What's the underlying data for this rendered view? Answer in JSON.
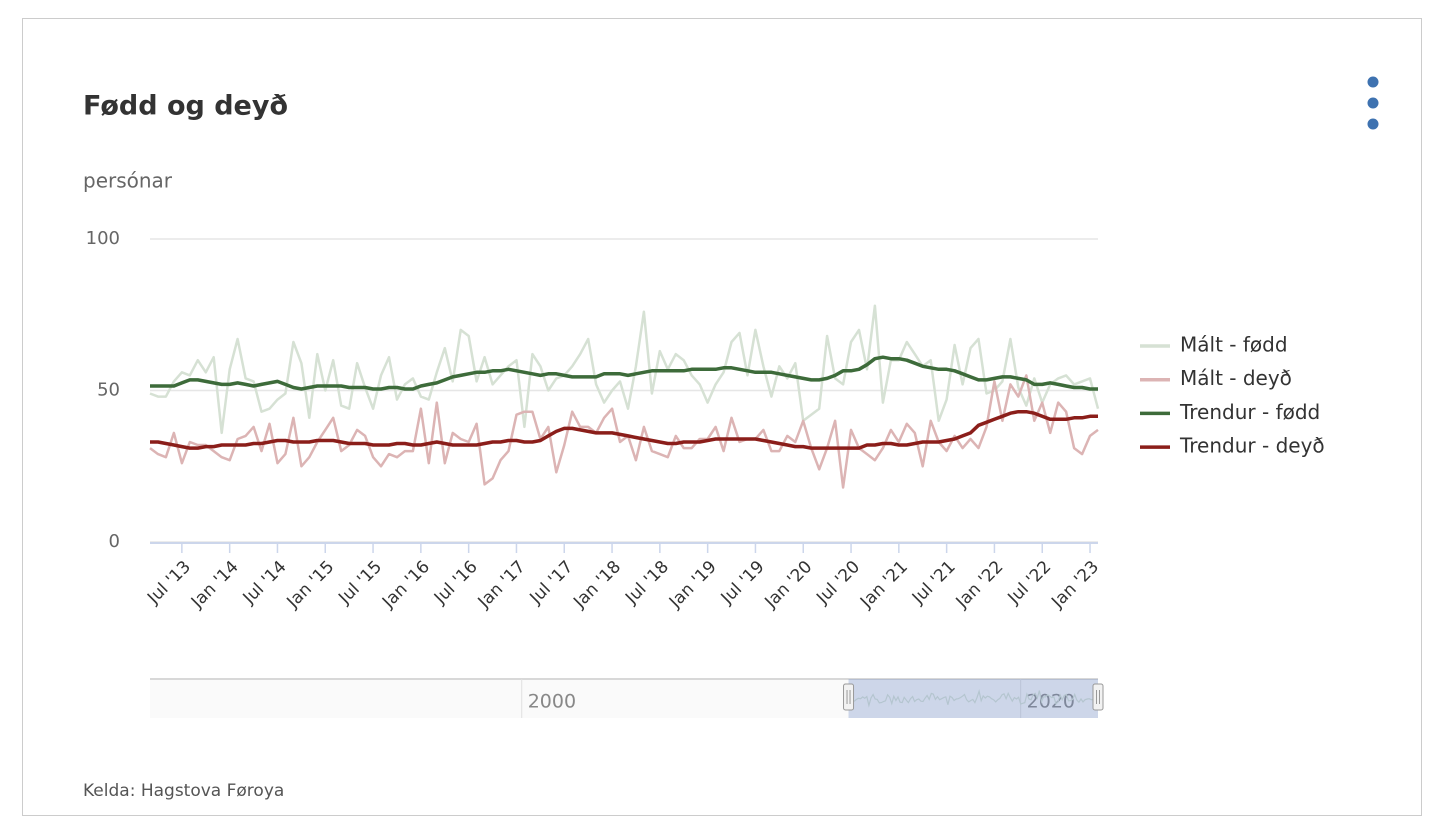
{
  "chart_data": {
    "type": "line",
    "title": "Fødd og deyð",
    "y_axis_title": "persónar",
    "source": "Kelda: Hagstova Føroya",
    "xlim": [
      "2013-03",
      "2023-02"
    ],
    "ylim": [
      0,
      100
    ],
    "yticks": [
      0,
      50,
      100
    ],
    "grid": true,
    "legend": "right",
    "x": [
      "2013-03",
      "2013-04",
      "2013-05",
      "2013-06",
      "2013-07",
      "2013-08",
      "2013-09",
      "2013-10",
      "2013-11",
      "2013-12",
      "2014-01",
      "2014-02",
      "2014-03",
      "2014-04",
      "2014-05",
      "2014-06",
      "2014-07",
      "2014-08",
      "2014-09",
      "2014-10",
      "2014-11",
      "2014-12",
      "2015-01",
      "2015-02",
      "2015-03",
      "2015-04",
      "2015-05",
      "2015-06",
      "2015-07",
      "2015-08",
      "2015-09",
      "2015-10",
      "2015-11",
      "2015-12",
      "2016-01",
      "2016-02",
      "2016-03",
      "2016-04",
      "2016-05",
      "2016-06",
      "2016-07",
      "2016-08",
      "2016-09",
      "2016-10",
      "2016-11",
      "2016-12",
      "2017-01",
      "2017-02",
      "2017-03",
      "2017-04",
      "2017-05",
      "2017-06",
      "2017-07",
      "2017-08",
      "2017-09",
      "2017-10",
      "2017-11",
      "2017-12",
      "2018-01",
      "2018-02",
      "2018-03",
      "2018-04",
      "2018-05",
      "2018-06",
      "2018-07",
      "2018-08",
      "2018-09",
      "2018-10",
      "2018-11",
      "2018-12",
      "2019-01",
      "2019-02",
      "2019-03",
      "2019-04",
      "2019-05",
      "2019-06",
      "2019-07",
      "2019-08",
      "2019-09",
      "2019-10",
      "2019-11",
      "2019-12",
      "2020-01",
      "2020-02",
      "2020-03",
      "2020-04",
      "2020-05",
      "2020-06",
      "2020-07",
      "2020-08",
      "2020-09",
      "2020-10",
      "2020-11",
      "2020-12",
      "2021-01",
      "2021-02",
      "2021-03",
      "2021-04",
      "2021-05",
      "2021-06",
      "2021-07",
      "2021-08",
      "2021-09",
      "2021-10",
      "2021-11",
      "2021-12",
      "2022-01",
      "2022-02",
      "2022-03",
      "2022-04",
      "2022-05",
      "2022-06",
      "2022-07",
      "2022-08",
      "2022-09",
      "2022-10",
      "2022-11",
      "2022-12",
      "2023-01",
      "2023-02"
    ],
    "xticks": [
      {
        "value": "2013-07",
        "label": "Jul '13"
      },
      {
        "value": "2014-01",
        "label": "Jan '14"
      },
      {
        "value": "2014-07",
        "label": "Jul '14"
      },
      {
        "value": "2015-01",
        "label": "Jan '15"
      },
      {
        "value": "2015-07",
        "label": "Jul '15"
      },
      {
        "value": "2016-01",
        "label": "Jan '16"
      },
      {
        "value": "2016-07",
        "label": "Jul '16"
      },
      {
        "value": "2017-01",
        "label": "Jan '17"
      },
      {
        "value": "2017-07",
        "label": "Jul '17"
      },
      {
        "value": "2018-01",
        "label": "Jan '18"
      },
      {
        "value": "2018-07",
        "label": "Jul '18"
      },
      {
        "value": "2019-01",
        "label": "Jan '19"
      },
      {
        "value": "2019-07",
        "label": "Jul '19"
      },
      {
        "value": "2020-01",
        "label": "Jan '20"
      },
      {
        "value": "2020-07",
        "label": "Jul '20"
      },
      {
        "value": "2021-01",
        "label": "Jan '21"
      },
      {
        "value": "2021-07",
        "label": "Jul '21"
      },
      {
        "value": "2022-01",
        "label": "Jan '22"
      },
      {
        "value": "2022-07",
        "label": "Jul '22"
      },
      {
        "value": "2023-01",
        "label": "Jan '23"
      }
    ],
    "series": [
      {
        "name": "Mált - fødd",
        "color": "#d6e1d4",
        "width": 2.5,
        "values": [
          49,
          48,
          48,
          53,
          56,
          55,
          60,
          56,
          61,
          36,
          57,
          67,
          54,
          53,
          43,
          44,
          47,
          49,
          66,
          59,
          41,
          62,
          50,
          60,
          45,
          44,
          59,
          51,
          44,
          55,
          61,
          47,
          52,
          54,
          48,
          47,
          56,
          64,
          53,
          70,
          68,
          53,
          61,
          52,
          55,
          58,
          60,
          38,
          62,
          58,
          50,
          54,
          55,
          58,
          62,
          67,
          52,
          46,
          50,
          53,
          44,
          58,
          76,
          49,
          63,
          57,
          62,
          60,
          55,
          52,
          46,
          52,
          56,
          66,
          69,
          55,
          70,
          58,
          48,
          58,
          54,
          59,
          40,
          42,
          44,
          68,
          54,
          52,
          66,
          70,
          57,
          78,
          46,
          60,
          60,
          66,
          62,
          58,
          60,
          40,
          47,
          65,
          52,
          64,
          67,
          49,
          50,
          53,
          67,
          51,
          45,
          54,
          46,
          52,
          54,
          55,
          52,
          53,
          54,
          44
        ]
      },
      {
        "name": "Mált - deyð",
        "color": "#dcb4b4",
        "width": 2.5,
        "values": [
          31,
          29,
          28,
          36,
          26,
          33,
          32,
          32,
          30,
          28,
          27,
          34,
          35,
          38,
          30,
          39,
          26,
          29,
          41,
          25,
          28,
          33,
          37,
          41,
          30,
          32,
          37,
          35,
          28,
          25,
          29,
          28,
          30,
          30,
          44,
          26,
          46,
          26,
          36,
          34,
          33,
          39,
          19,
          21,
          27,
          30,
          42,
          43,
          43,
          34,
          38,
          23,
          32,
          43,
          38,
          38,
          36,
          41,
          44,
          33,
          35,
          27,
          38,
          30,
          29,
          28,
          35,
          31,
          31,
          34,
          34,
          38,
          30,
          41,
          33,
          34,
          34,
          37,
          30,
          30,
          35,
          33,
          40,
          31,
          24,
          31,
          40,
          18,
          37,
          31,
          29,
          27,
          31,
          37,
          33,
          39,
          36,
          25,
          40,
          33,
          30,
          35,
          31,
          34,
          31,
          38,
          53,
          40,
          52,
          48,
          55,
          40,
          46,
          36,
          46,
          43,
          31,
          29,
          35,
          37
        ]
      },
      {
        "name": "Trendur - fødd",
        "color": "#3d6b3a",
        "width": 3.5,
        "values": [
          51.5,
          51.5,
          51.5,
          51.5,
          52.5,
          53.5,
          53.5,
          53,
          52.5,
          52,
          52,
          52.5,
          52,
          51.5,
          52,
          52.5,
          53,
          52,
          51,
          50.5,
          51,
          51.5,
          51.5,
          51.5,
          51.5,
          51,
          51,
          51,
          50.5,
          50.5,
          51,
          51,
          50.5,
          50.5,
          51.5,
          52,
          52.5,
          53.5,
          54.5,
          55,
          55.5,
          56,
          56,
          56.5,
          56.5,
          57,
          56.5,
          56,
          55.5,
          55,
          55.5,
          55.5,
          55,
          54.5,
          54.5,
          54.5,
          54.5,
          55.5,
          55.5,
          55.5,
          55,
          55.5,
          56,
          56.5,
          56.5,
          56.5,
          56.5,
          56.5,
          57,
          57,
          57,
          57,
          57.5,
          57.5,
          57,
          56.5,
          56,
          56,
          56,
          55.5,
          55,
          54.5,
          54,
          53.5,
          53.5,
          54,
          55,
          56.5,
          56.5,
          57,
          58.5,
          60.5,
          61,
          60.5,
          60.5,
          60,
          59,
          58,
          57.5,
          57,
          57,
          56.5,
          55.5,
          54.5,
          53.5,
          53.5,
          54,
          54.5,
          54.5,
          54,
          53.5,
          52,
          52,
          52.5,
          52,
          51.5,
          51,
          51,
          50.5,
          50.5
        ]
      },
      {
        "name": "Trendur - deyð",
        "color": "#8b1e1a",
        "width": 3.5,
        "values": [
          33,
          33,
          32.5,
          32,
          31.5,
          31,
          31,
          31.5,
          31.5,
          32,
          32,
          32,
          32,
          32.5,
          32.5,
          33,
          33.5,
          33.5,
          33,
          33,
          33,
          33.5,
          33.5,
          33.5,
          33,
          32.5,
          32.5,
          32.5,
          32,
          32,
          32,
          32.5,
          32.5,
          32,
          32,
          32.5,
          33,
          32.5,
          32,
          32,
          32,
          32,
          32.5,
          33,
          33,
          33.5,
          33.5,
          33,
          33,
          33.5,
          35,
          36.5,
          37.5,
          37.5,
          37,
          36.5,
          36,
          36,
          36,
          35.5,
          35,
          34.5,
          34,
          33.5,
          33,
          32.5,
          32.5,
          33,
          33,
          33,
          33.5,
          34,
          34,
          34,
          34,
          34,
          34,
          33.5,
          33,
          32.5,
          32,
          31.5,
          31.5,
          31,
          31,
          31,
          31,
          31,
          31,
          31,
          32,
          32,
          32.5,
          32.5,
          32,
          32,
          32.5,
          33,
          33,
          33,
          33.5,
          34,
          35,
          36,
          38.5,
          39.5,
          40.5,
          41.5,
          42.5,
          43,
          43,
          42.5,
          41.5,
          40.5,
          40.5,
          40.5,
          41,
          41,
          41.5,
          41.5
        ]
      }
    ],
    "navigator": {
      "xlim": [
        1985.1,
        2023.1
      ],
      "xticks": [
        2000,
        2020
      ],
      "range": [
        2013.1,
        2023.1
      ]
    }
  }
}
